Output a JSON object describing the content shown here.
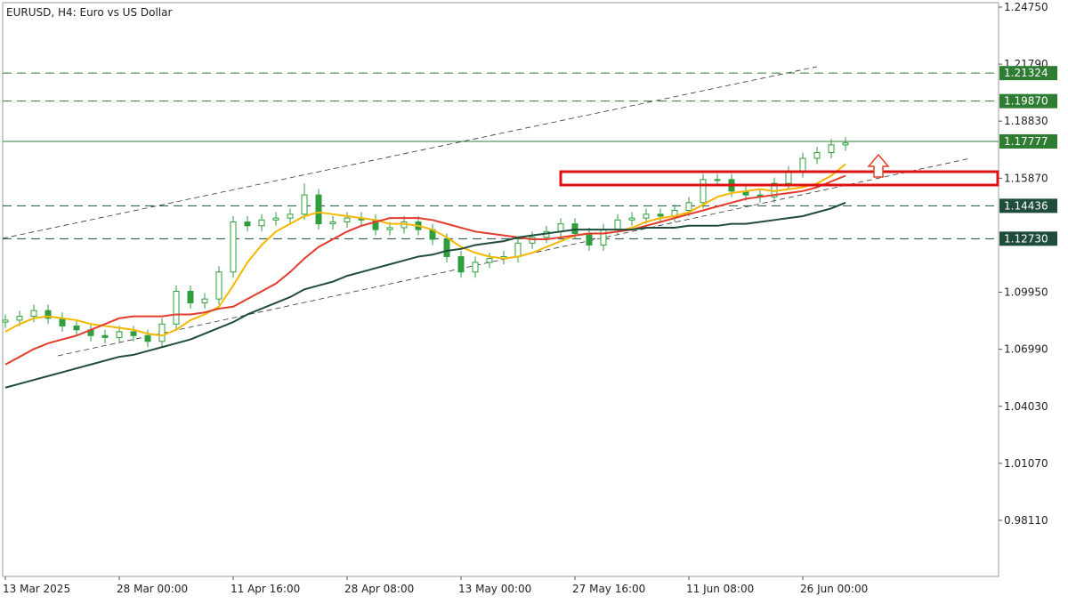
{
  "chart_data": {
    "type": "candlestick",
    "title": "EURUSD, H4:  Euro vs US Dollar",
    "categories": [
      "13 Mar 2025",
      null,
      null,
      null,
      null,
      null,
      null,
      null,
      "28 Mar 00:00",
      null,
      null,
      null,
      null,
      null,
      null,
      null,
      "11 Apr 16:00",
      null,
      null,
      null,
      null,
      null,
      null,
      null,
      "28 Apr 08:00",
      null,
      null,
      null,
      null,
      null,
      null,
      null,
      "13 May 00:00",
      null,
      null,
      null,
      null,
      null,
      null,
      null,
      "27 May 16:00",
      null,
      null,
      null,
      null,
      null,
      null,
      null,
      "11 Jun 08:00",
      null,
      null,
      null,
      null,
      null,
      null,
      null,
      "26 Jun 00:00",
      null,
      null,
      null
    ],
    "open": [
      1.084,
      1.085,
      1.087,
      1.09,
      1.086,
      1.082,
      1.08,
      1.077,
      1.076,
      1.079,
      1.077,
      1.074,
      1.083,
      1.1,
      1.094,
      1.096,
      1.11,
      1.136,
      1.134,
      1.137,
      1.138,
      1.14,
      1.15,
      1.135,
      1.136,
      1.138,
      1.137,
      1.132,
      1.133,
      1.136,
      1.132,
      1.127,
      1.118,
      1.11,
      1.115,
      1.117,
      1.118,
      1.125,
      1.128,
      1.131,
      1.135,
      1.13,
      1.124,
      1.132,
      1.137,
      1.138,
      1.14,
      1.139,
      1.142,
      1.146,
      1.158,
      1.158,
      1.152,
      1.15,
      1.149,
      1.156,
      1.162,
      1.169,
      1.172,
      1.176
    ],
    "high": [
      1.088,
      1.09,
      1.093,
      1.093,
      1.089,
      1.085,
      1.083,
      1.08,
      1.082,
      1.082,
      1.08,
      1.086,
      1.103,
      1.103,
      1.099,
      1.113,
      1.139,
      1.139,
      1.14,
      1.141,
      1.143,
      1.156,
      1.153,
      1.139,
      1.141,
      1.141,
      1.14,
      1.136,
      1.139,
      1.139,
      1.135,
      1.13,
      1.121,
      1.118,
      1.12,
      1.121,
      1.128,
      1.131,
      1.134,
      1.138,
      1.138,
      1.133,
      1.135,
      1.14,
      1.141,
      1.143,
      1.143,
      1.145,
      1.149,
      1.161,
      1.161,
      1.161,
      1.155,
      1.153,
      1.159,
      1.165,
      1.172,
      1.175,
      1.179,
      1.18
    ],
    "low": [
      1.081,
      1.082,
      1.084,
      1.083,
      1.079,
      1.077,
      1.074,
      1.073,
      1.073,
      1.074,
      1.071,
      1.071,
      1.08,
      1.091,
      1.091,
      1.093,
      1.107,
      1.131,
      1.131,
      1.134,
      1.135,
      1.137,
      1.132,
      1.132,
      1.133,
      1.134,
      1.129,
      1.129,
      1.13,
      1.129,
      1.124,
      1.115,
      1.107,
      1.107,
      1.112,
      1.114,
      1.115,
      1.122,
      1.125,
      1.128,
      1.127,
      1.121,
      1.121,
      1.129,
      1.134,
      1.135,
      1.136,
      1.136,
      1.139,
      1.143,
      1.155,
      1.149,
      1.147,
      1.146,
      1.146,
      1.153,
      1.159,
      1.166,
      1.169,
      1.173
    ],
    "close": [
      1.085,
      1.087,
      1.09,
      1.086,
      1.082,
      1.08,
      1.077,
      1.076,
      1.079,
      1.077,
      1.074,
      1.083,
      1.1,
      1.094,
      1.096,
      1.11,
      1.136,
      1.134,
      1.137,
      1.138,
      1.14,
      1.15,
      1.135,
      1.136,
      1.138,
      1.137,
      1.132,
      1.133,
      1.136,
      1.132,
      1.127,
      1.118,
      1.11,
      1.115,
      1.117,
      1.118,
      1.125,
      1.128,
      1.131,
      1.135,
      1.13,
      1.124,
      1.132,
      1.137,
      1.138,
      1.14,
      1.139,
      1.142,
      1.146,
      1.158,
      1.158,
      1.152,
      1.15,
      1.149,
      1.156,
      1.162,
      1.169,
      1.172,
      1.176,
      1.177
    ],
    "up_color": "#2e9e3e",
    "down_color": "#2e9e3e",
    "series": [
      {
        "color": "#f5b700",
        "values": [
          1.079,
          1.083,
          1.086,
          1.087,
          1.086,
          1.085,
          1.083,
          1.082,
          1.081,
          1.08,
          1.078,
          1.077,
          1.08,
          1.085,
          1.088,
          1.092,
          1.103,
          1.115,
          1.124,
          1.131,
          1.135,
          1.139,
          1.141,
          1.14,
          1.139,
          1.138,
          1.137,
          1.135,
          1.135,
          1.134,
          1.132,
          1.128,
          1.123,
          1.12,
          1.118,
          1.117,
          1.118,
          1.12,
          1.123,
          1.126,
          1.129,
          1.13,
          1.13,
          1.131,
          1.133,
          1.136,
          1.138,
          1.139,
          1.141,
          1.145,
          1.149,
          1.151,
          1.152,
          1.153,
          1.152,
          1.153,
          1.154,
          1.156,
          1.16,
          1.166
        ]
      },
      {
        "color": "#e53b2c",
        "values": [
          1.062,
          1.066,
          1.07,
          1.073,
          1.075,
          1.077,
          1.08,
          1.083,
          1.086,
          1.087,
          1.087,
          1.087,
          1.088,
          1.088,
          1.089,
          1.091,
          1.092,
          1.096,
          1.1,
          1.104,
          1.11,
          1.117,
          1.123,
          1.127,
          1.131,
          1.134,
          1.136,
          1.138,
          1.138,
          1.138,
          1.137,
          1.135,
          1.133,
          1.131,
          1.13,
          1.129,
          1.128,
          1.127,
          1.127,
          1.128,
          1.129,
          1.13,
          1.13,
          1.131,
          1.132,
          1.134,
          1.136,
          1.138,
          1.14,
          1.142,
          1.144,
          1.146,
          1.148,
          1.149,
          1.15,
          1.151,
          1.152,
          1.154,
          1.157,
          1.16
        ]
      },
      {
        "color": "#1f4d3a",
        "values": [
          1.05,
          1.052,
          1.054,
          1.056,
          1.058,
          1.06,
          1.062,
          1.064,
          1.066,
          1.067,
          1.069,
          1.071,
          1.073,
          1.075,
          1.078,
          1.081,
          1.084,
          1.088,
          1.091,
          1.094,
          1.097,
          1.101,
          1.103,
          1.105,
          1.108,
          1.11,
          1.112,
          1.114,
          1.116,
          1.118,
          1.119,
          1.121,
          1.122,
          1.124,
          1.125,
          1.126,
          1.128,
          1.129,
          1.13,
          1.131,
          1.132,
          1.132,
          1.132,
          1.132,
          1.132,
          1.133,
          1.133,
          1.133,
          1.134,
          1.134,
          1.134,
          1.135,
          1.135,
          1.136,
          1.137,
          1.138,
          1.139,
          1.141,
          1.143,
          1.146
        ]
      }
    ],
    "ylim": [
      0.952,
      1.2498
    ],
    "yticks": [
      {
        "value": 1.2475,
        "label": "1.24750"
      },
      {
        "value": 1.2179,
        "label": "1.21790"
      },
      {
        "value": 1.1883,
        "label": "1.18830"
      },
      {
        "value": 1.1587,
        "label": "1.15870"
      },
      {
        "value": 1.0995,
        "label": "1.09950"
      },
      {
        "value": 1.0699,
        "label": "1.06990"
      },
      {
        "value": 1.0403,
        "label": "1.04030"
      },
      {
        "value": 1.0107,
        "label": "1.01070"
      },
      {
        "value": 0.9811,
        "label": "0.98110"
      }
    ],
    "levels": [
      {
        "value": 1.21324,
        "label": "1.21324",
        "style": "dashed",
        "color": "#2e7d32"
      },
      {
        "value": 1.1987,
        "label": "1.19870",
        "style": "dashed",
        "color": "#2e7d32"
      },
      {
        "value": 1.17777,
        "label": "1.17777",
        "style": "solid",
        "color": "#2e7d32"
      },
      {
        "value": 1.14436,
        "label": "1.14436",
        "style": "dashed",
        "color": "#1f4d3a"
      },
      {
        "value": 1.1273,
        "label": "1.12730",
        "style": "dashed",
        "color": "#1f4d3a"
      }
    ]
  }
}
